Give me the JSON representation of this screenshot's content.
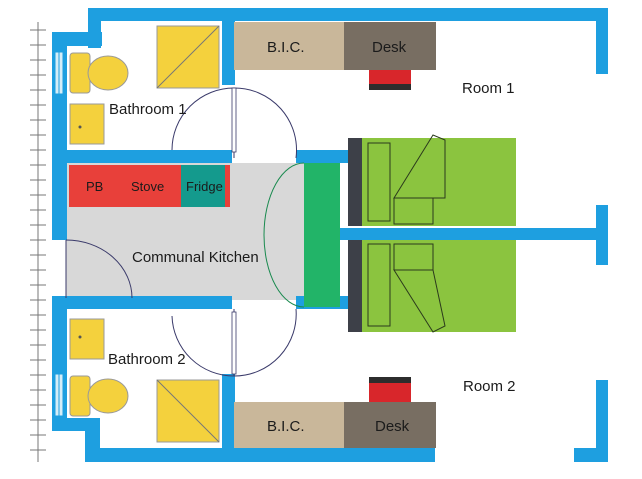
{
  "floor_plan": {
    "rooms": {
      "room1": "Room 1",
      "room2": "Room 2",
      "bathroom1": "Bathroom 1",
      "bathroom2": "Bathroom 2",
      "kitchen": "Communal Kitchen"
    },
    "furniture": {
      "bic_top": "B.I.C.",
      "desk_top": "Desk",
      "bic_bottom": "B.I.C.",
      "desk_bottom": "Desk",
      "pb": "PB",
      "stove": "Stove",
      "fridge": "Fridge"
    },
    "colors": {
      "wall": "#1e9fe0",
      "bic": "#c9b79a",
      "desk": "#786e62",
      "chair_red": "#d8262b",
      "bed": "#8bc43f",
      "bed_head": "#3d4048",
      "counter": "#e8403a",
      "fridge": "#149a8d",
      "kitchen_floor": "#d8d8d8",
      "door_green": "#22b468",
      "fixture_yellow": "#f4d13d",
      "window_glass": "#d5eef8"
    }
  }
}
